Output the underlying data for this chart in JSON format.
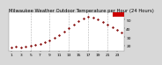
{
  "title": "Milwaukee Weather Outdoor Temperature per Hour (24 Hours)",
  "background_color": "#d8d8d8",
  "plot_bg_color": "#ffffff",
  "marker_color": "#cc0000",
  "highlight_color": "#cc0000",
  "hours": [
    1,
    2,
    3,
    4,
    5,
    6,
    7,
    8,
    9,
    10,
    11,
    12,
    13,
    14,
    15,
    16,
    17,
    18,
    19,
    20,
    21,
    22,
    23,
    24
  ],
  "temps": [
    18,
    19,
    18,
    19,
    20,
    21,
    22,
    24,
    26,
    29,
    32,
    36,
    40,
    44,
    48,
    51,
    53,
    52,
    50,
    47,
    44,
    41,
    38,
    35
  ],
  "ylim": [
    14,
    58
  ],
  "xlim": [
    0.5,
    24.5
  ],
  "xticks": [
    1,
    3,
    5,
    7,
    9,
    11,
    13,
    15,
    17,
    19,
    21,
    23
  ],
  "xtick_labels": [
    "1",
    "3",
    "5",
    "7",
    "9",
    "11",
    "13",
    "15",
    "17",
    "19",
    "21",
    "23"
  ],
  "yticks": [
    20,
    30,
    40,
    50
  ],
  "ytick_labels": [
    "20",
    "30",
    "40",
    "50"
  ],
  "grid_x": [
    5,
    9,
    13,
    17,
    21
  ],
  "title_fontsize": 3.8,
  "tick_fontsize": 3.2,
  "highlight_xmin": 22,
  "highlight_xmax": 24.5,
  "highlight_ymin": 53,
  "highlight_ymax": 58
}
